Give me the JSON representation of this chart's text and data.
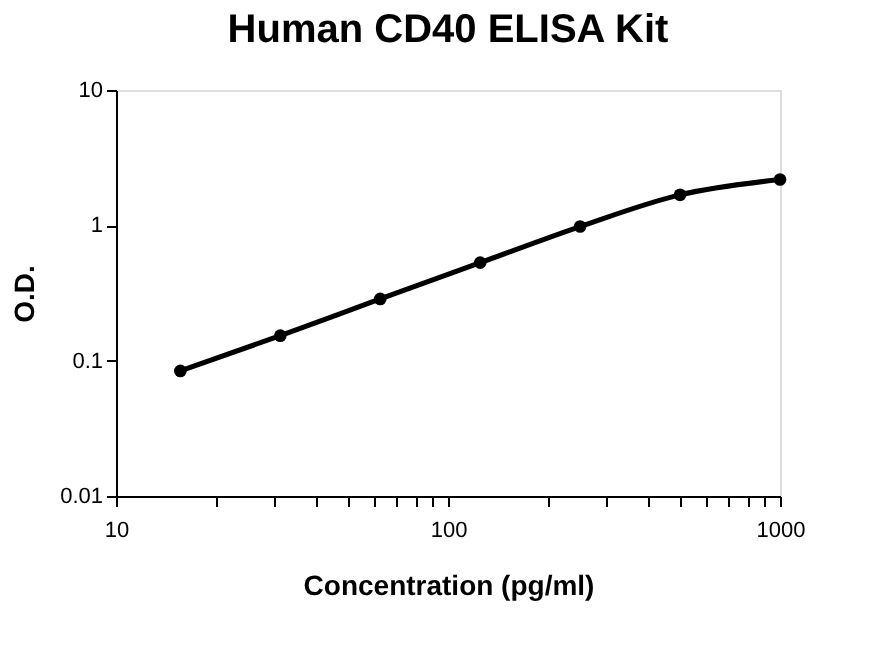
{
  "chart_data": {
    "type": "line",
    "title": "Human CD40 ELISA Kit",
    "xlabel": "Concentration (pg/ml)",
    "ylabel": "O.D.",
    "x": [
      15.625,
      31.25,
      62.5,
      125,
      250,
      500,
      1000
    ],
    "series": [
      {
        "color": "#000000",
        "values": [
          0.084,
          0.153,
          0.286,
          0.53,
          0.98,
          1.68,
          2.18
        ]
      }
    ],
    "log": "xy",
    "xlim": [
      10,
      1000
    ],
    "ylim": [
      0.01,
      10
    ],
    "xticks": [
      10,
      {
        "value": 20,
        "label": null
      },
      {
        "value": 30,
        "label": null
      },
      {
        "value": 40,
        "label": null
      },
      {
        "value": 50,
        "label": null
      },
      {
        "value": 60,
        "label": null
      },
      {
        "value": 70,
        "label": null
      },
      {
        "value": 80,
        "label": null
      },
      {
        "value": 90,
        "label": null
      },
      100,
      {
        "value": 200,
        "label": null
      },
      {
        "value": 300,
        "label": null
      },
      {
        "value": 400,
        "label": null
      },
      {
        "value": 500,
        "label": null
      },
      {
        "value": 600,
        "label": null
      },
      {
        "value": 700,
        "label": null
      },
      {
        "value": 800,
        "label": null
      },
      {
        "value": 900,
        "label": null
      },
      1000
    ],
    "yticks": [
      0.01,
      0.1,
      1,
      10
    ],
    "grid": false,
    "legend": false,
    "marker": "circle",
    "line_style": "solid"
  }
}
